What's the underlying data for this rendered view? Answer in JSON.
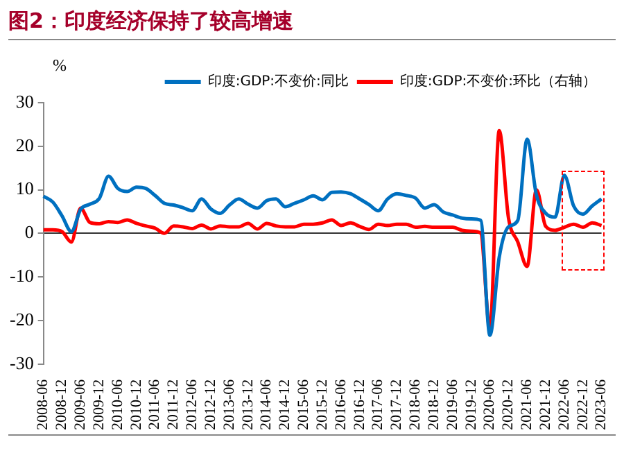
{
  "chart_data": {
    "type": "line",
    "title": "图2：印度经济保持了较高增速",
    "ylabel": "%",
    "categories": [
      "2008-06",
      null,
      "2008-12",
      null,
      "2009-06",
      null,
      "2009-12",
      null,
      "2010-06",
      null,
      "2010-12",
      null,
      "2011-06",
      null,
      "2011-12",
      null,
      "2012-06",
      null,
      "2012-12",
      null,
      "2013-06",
      null,
      "2013-12",
      null,
      "2014-06",
      null,
      "2014-12",
      null,
      "2015-06",
      null,
      "2015-12",
      null,
      "2016-06",
      null,
      "2016-12",
      null,
      "2017-06",
      null,
      "2017-12",
      null,
      "2018-06",
      null,
      "2018-12",
      null,
      "2019-06",
      null,
      "2019-12",
      null,
      "2020-06",
      null,
      "2020-12",
      null,
      "2021-06",
      null,
      "2021-12",
      null,
      "2022-06",
      null,
      "2022-12",
      null,
      "2023-06"
    ],
    "series": [
      {
        "name": "印度:GDP:不变价:同比",
        "color": "#0070c0",
        "values": [
          8.5,
          7.2,
          4,
          0.4,
          5.5,
          6.7,
          8,
          13.1,
          10.3,
          9.6,
          10.6,
          10.3,
          8.7,
          6.9,
          6.5,
          5.9,
          5.2,
          7.9,
          5.6,
          4.6,
          6.5,
          7.9,
          6.7,
          5.8,
          7.5,
          7.9,
          6.1,
          6.9,
          7.7,
          8.6,
          7.7,
          9.4,
          9.5,
          9.1,
          7.9,
          6.6,
          5.2,
          7.9,
          9.1,
          8.7,
          8.1,
          5.8,
          6.6,
          4.9,
          4.2,
          3.5,
          3.3,
          3,
          -23.4,
          -5.5,
          1.5,
          3,
          21.6,
          8.8,
          4.6,
          3.7,
          13.3,
          6.3,
          4.4,
          6.3,
          7.9
        ]
      },
      {
        "name": "印度:GDP:不变价:环比（右轴）",
        "color": "#ff0000",
        "values": [
          0.8,
          0.8,
          0.4,
          -2,
          5.8,
          2.5,
          2.2,
          2.7,
          2.5,
          3.1,
          2.3,
          1.7,
          1.2,
          0,
          1.7,
          1.5,
          1.1,
          1.9,
          1,
          1.7,
          1.5,
          1.5,
          2.3,
          1,
          2.3,
          1.7,
          1.5,
          1.5,
          2.1,
          2.1,
          2.4,
          3.1,
          1.8,
          2.4,
          1.6,
          0.9,
          2.1,
          1.8,
          2.1,
          2.1,
          1.4,
          1.6,
          1.4,
          1.4,
          1.4,
          0.7,
          0.5,
          0.1,
          -22,
          23.6,
          3.5,
          -2,
          -7.6,
          10,
          1.6,
          0.7,
          1.4,
          2.1,
          1.4,
          2.4,
          1.8
        ]
      }
    ],
    "ylim": [
      -30,
      30
    ],
    "yticks": [
      -30,
      -20,
      -10,
      0,
      10,
      20,
      30
    ],
    "legend": "top",
    "marker": "none",
    "line_style": "solid"
  }
}
